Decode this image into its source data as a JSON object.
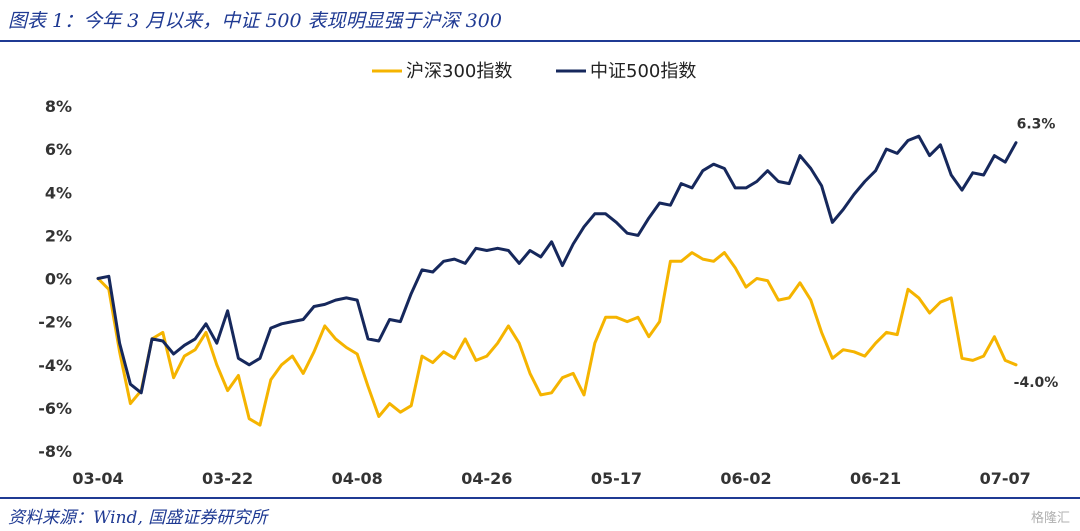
{
  "header": {
    "title": "图表 1：今年 3 月以来，中证 500 表现明显强于沪深 300"
  },
  "footer": {
    "source": "资料来源：Wind, 国盛证券研究所",
    "watermark": "格隆汇"
  },
  "chart_data": {
    "type": "line",
    "title": "",
    "xlabel": "",
    "ylabel": "",
    "ylim": [
      -8,
      8
    ],
    "y_ticks": [
      8,
      6,
      4,
      2,
      0,
      -2,
      -4,
      -6,
      -8
    ],
    "y_tick_labels": [
      "8%",
      "6%",
      "4%",
      "2%",
      "0%",
      "-2%",
      "-4%",
      "-6%",
      "-8%"
    ],
    "y_unit": "%",
    "grid": false,
    "legend": "top-center",
    "x_tick_labels": [
      "03-04",
      "03-22",
      "04-08",
      "04-26",
      "05-17",
      "06-02",
      "06-21",
      "07-07"
    ],
    "x_tick_index": [
      0,
      12,
      24,
      36,
      48,
      60,
      72,
      84
    ],
    "series": [
      {
        "name": "沪深300指数",
        "color": "#f5b400",
        "end_label": "-4.0%",
        "values": [
          0.0,
          -0.5,
          -3.4,
          -5.8,
          -5.2,
          -2.8,
          -2.5,
          -4.6,
          -3.6,
          -3.3,
          -2.5,
          -4.0,
          -5.2,
          -4.5,
          -6.5,
          -6.8,
          -4.7,
          -4.0,
          -3.6,
          -4.4,
          -3.4,
          -2.2,
          -2.8,
          -3.2,
          -3.5,
          -5.0,
          -6.4,
          -5.8,
          -6.2,
          -5.9,
          -3.6,
          -3.9,
          -3.4,
          -3.7,
          -2.8,
          -3.8,
          -3.6,
          -3.0,
          -2.2,
          -3.0,
          -4.4,
          -5.4,
          -5.3,
          -4.6,
          -4.4,
          -5.4,
          -3.0,
          -1.8,
          -1.8,
          -2.0,
          -1.8,
          -2.7,
          -2.0,
          0.8,
          0.8,
          1.2,
          0.9,
          0.8,
          1.2,
          0.5,
          -0.4,
          0.0,
          -0.1,
          -1.0,
          -0.9,
          -0.2,
          -1.0,
          -2.5,
          -3.7,
          -3.3,
          -3.4,
          -3.6,
          -3.0,
          -2.5,
          -2.6,
          -0.5,
          -0.9,
          -1.6,
          -1.1,
          -0.9,
          -3.7,
          -3.8,
          -3.6,
          -2.7,
          -3.8,
          -4.0
        ]
      },
      {
        "name": "中证500指数",
        "color": "#16285c",
        "end_label": "6.3%",
        "values": [
          0.0,
          0.1,
          -3.0,
          -4.9,
          -5.3,
          -2.8,
          -2.9,
          -3.5,
          -3.1,
          -2.8,
          -2.1,
          -3.0,
          -1.5,
          -3.7,
          -4.0,
          -3.7,
          -2.3,
          -2.1,
          -2.0,
          -1.9,
          -1.3,
          -1.2,
          -1.0,
          -0.9,
          -1.0,
          -2.8,
          -2.9,
          -1.9,
          -2.0,
          -0.7,
          0.4,
          0.3,
          0.8,
          0.9,
          0.7,
          1.4,
          1.3,
          1.4,
          1.3,
          0.7,
          1.3,
          1.0,
          1.7,
          0.6,
          1.6,
          2.4,
          3.0,
          3.0,
          2.6,
          2.1,
          2.0,
          2.8,
          3.5,
          3.4,
          4.4,
          4.2,
          5.0,
          5.3,
          5.1,
          4.2,
          4.2,
          4.5,
          5.0,
          4.5,
          4.4,
          5.7,
          5.1,
          4.3,
          2.6,
          3.2,
          3.9,
          4.5,
          5.0,
          6.0,
          5.8,
          6.4,
          6.6,
          5.7,
          6.2,
          4.8,
          4.1,
          4.9,
          4.8,
          5.7,
          5.4,
          6.3
        ]
      }
    ]
  }
}
